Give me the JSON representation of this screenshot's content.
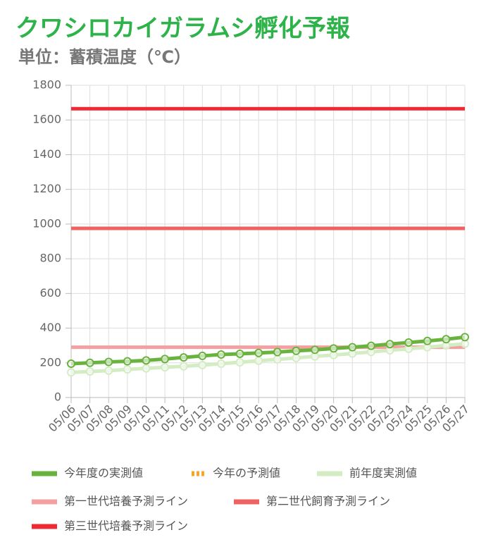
{
  "chart_data": {
    "type": "line",
    "title": "クワシロカイガラムシ孵化予報",
    "subtitle": "単位：蓄積温度（℃）",
    "categories": [
      "05/06",
      "05/07",
      "05/08",
      "05/09",
      "05/10",
      "05/11",
      "05/12",
      "05/13",
      "05/14",
      "05/15",
      "05/16",
      "05/17",
      "05/18",
      "05/19",
      "05/20",
      "05/21",
      "05/22",
      "05/23",
      "05/24",
      "05/25",
      "05/26",
      "05/27"
    ],
    "series": [
      {
        "name": "今年度の実測値",
        "color": "#6ab23e",
        "marker": true,
        "dashed": false,
        "values": [
          195,
          200,
          205,
          209,
          214,
          222,
          231,
          240,
          248,
          252,
          257,
          262,
          269,
          275,
          283,
          290,
          298,
          308,
          317,
          326,
          336,
          348
        ]
      },
      {
        "name": "今年の予測値",
        "color": "#f5a623",
        "marker": true,
        "dashed": true,
        "values": [
          null,
          null,
          null,
          null,
          null,
          null,
          null,
          null,
          null,
          null,
          null,
          null,
          null,
          null,
          null,
          null,
          null,
          null,
          null,
          null,
          null,
          null
        ]
      },
      {
        "name": "前年度実測値",
        "color": "#d4ecc4",
        "marker": true,
        "dashed": false,
        "values": [
          145,
          150,
          155,
          162,
          168,
          174,
          180,
          187,
          195,
          203,
          212,
          220,
          228,
          237,
          245,
          254,
          263,
          272,
          281,
          290,
          300,
          310
        ]
      },
      {
        "name": "第一世代培養予測ライン",
        "color": "#f4a0a0",
        "marker": false,
        "dashed": false,
        "values": [
          290,
          290,
          290,
          290,
          290,
          290,
          290,
          290,
          290,
          290,
          290,
          290,
          290,
          290,
          290,
          290,
          290,
          290,
          290,
          290,
          290,
          290
        ]
      },
      {
        "name": "第二世代飼育予測ライン",
        "color": "#ef6262",
        "marker": false,
        "dashed": false,
        "values": [
          975,
          975,
          975,
          975,
          975,
          975,
          975,
          975,
          975,
          975,
          975,
          975,
          975,
          975,
          975,
          975,
          975,
          975,
          975,
          975,
          975,
          975
        ]
      },
      {
        "name": "第三世代培養予測ライン",
        "color": "#ee2b35",
        "marker": false,
        "dashed": false,
        "values": [
          1665,
          1665,
          1665,
          1665,
          1665,
          1665,
          1665,
          1665,
          1665,
          1665,
          1665,
          1665,
          1665,
          1665,
          1665,
          1665,
          1665,
          1665,
          1665,
          1665,
          1665,
          1665
        ]
      }
    ],
    "ylim": [
      0,
      1800
    ],
    "yticks": [
      0,
      200,
      400,
      600,
      800,
      1000,
      1200,
      1400,
      1600,
      1800
    ],
    "grid": true
  }
}
